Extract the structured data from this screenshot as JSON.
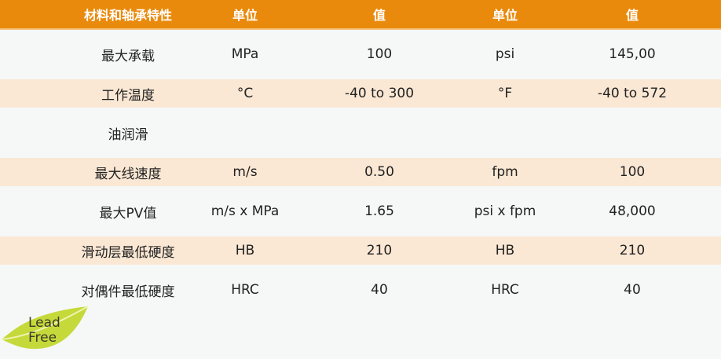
{
  "header": [
    "材料和轴承特性",
    "单位",
    "值",
    "单位",
    "值"
  ],
  "rows": [
    [
      "最大承载",
      "MPa",
      "100",
      "psi",
      "145,00"
    ],
    [
      "工作温度",
      "°C",
      "-40 to 300",
      "°F",
      "-40 to 572"
    ],
    [
      "油润滑",
      "",
      "",
      "",
      ""
    ],
    [
      "最大线速度",
      "m/s",
      "0.50",
      "fpm",
      "100"
    ],
    [
      "最大PV值",
      "m/s x MPa",
      "1.65",
      "psi x fpm",
      "48,000"
    ],
    [
      "滑动层最低硬度",
      "HB",
      "210",
      "HB",
      "210"
    ],
    [
      "对偶件最低硬度",
      "HRC",
      "40",
      "HRC",
      "40"
    ]
  ],
  "logo": {
    "text": "Lead Free",
    "line1": "Lead",
    "line2": "Free"
  },
  "colors": {
    "header": "#ea8a0c",
    "band": "#fbe8d4",
    "leaf": "#c5d93a"
  }
}
